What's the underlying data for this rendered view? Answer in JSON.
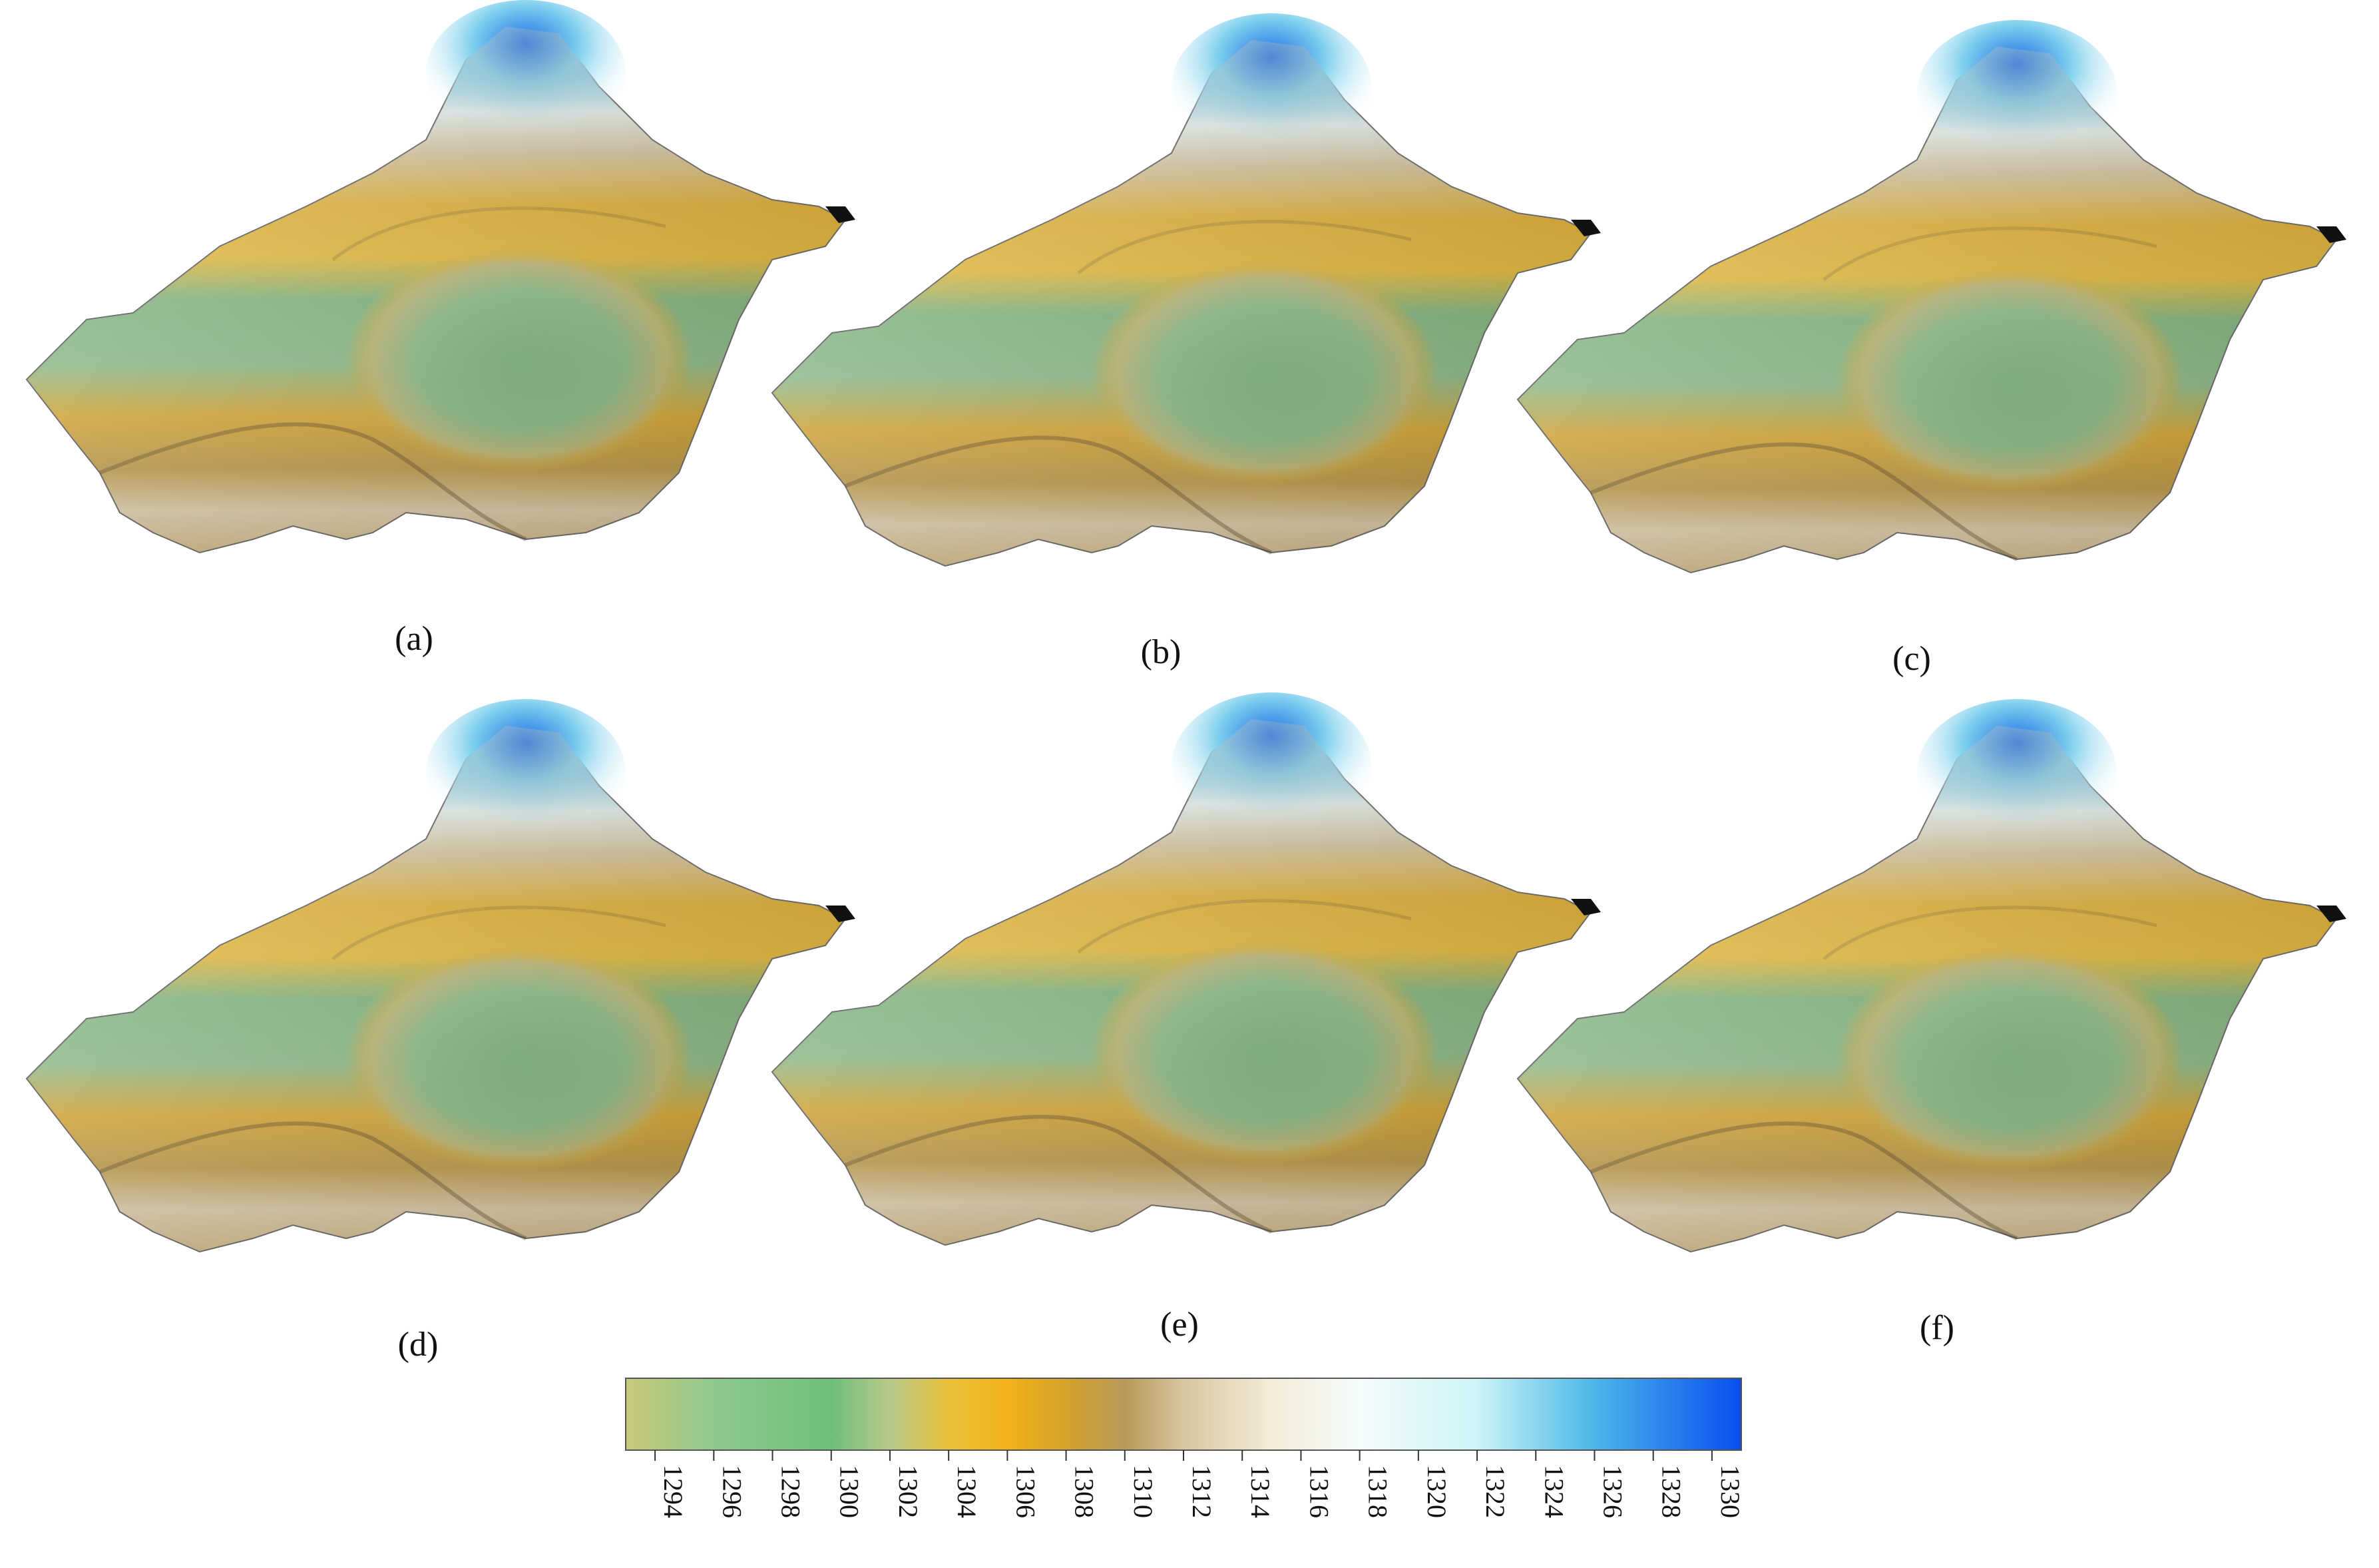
{
  "figure": {
    "panels": [
      {
        "id": "a",
        "label": "(a)"
      },
      {
        "id": "b",
        "label": "(b)"
      },
      {
        "id": "c",
        "label": "(c)"
      },
      {
        "id": "d",
        "label": "(d)"
      },
      {
        "id": "e",
        "label": "(e)"
      },
      {
        "id": "f",
        "label": "(f)"
      }
    ],
    "colorbar": {
      "min": 1293,
      "max": 1331,
      "ticks": [
        "1294",
        "1296",
        "1298",
        "1300",
        "1302",
        "1304",
        "1306",
        "1308",
        "1310",
        "1312",
        "1314",
        "1316",
        "1318",
        "1320",
        "1322",
        "1324",
        "1326",
        "1328",
        "1330"
      ],
      "stops": [
        {
          "value": 1293,
          "color": "#c9c97a"
        },
        {
          "value": 1296,
          "color": "#8fc98e"
        },
        {
          "value": 1300,
          "color": "#6fbf7a"
        },
        {
          "value": 1302,
          "color": "#b8c98a"
        },
        {
          "value": 1304,
          "color": "#e9c23a"
        },
        {
          "value": 1306,
          "color": "#f2b21a"
        },
        {
          "value": 1308,
          "color": "#d4a22a"
        },
        {
          "value": 1310,
          "color": "#b89a5a"
        },
        {
          "value": 1312,
          "color": "#d8c7a0"
        },
        {
          "value": 1315,
          "color": "#f4ecd8"
        },
        {
          "value": 1318,
          "color": "#f4fbfb"
        },
        {
          "value": 1322,
          "color": "#cdf4f7"
        },
        {
          "value": 1326,
          "color": "#4ab7e8"
        },
        {
          "value": 1331,
          "color": "#0a4df0"
        }
      ]
    }
  }
}
